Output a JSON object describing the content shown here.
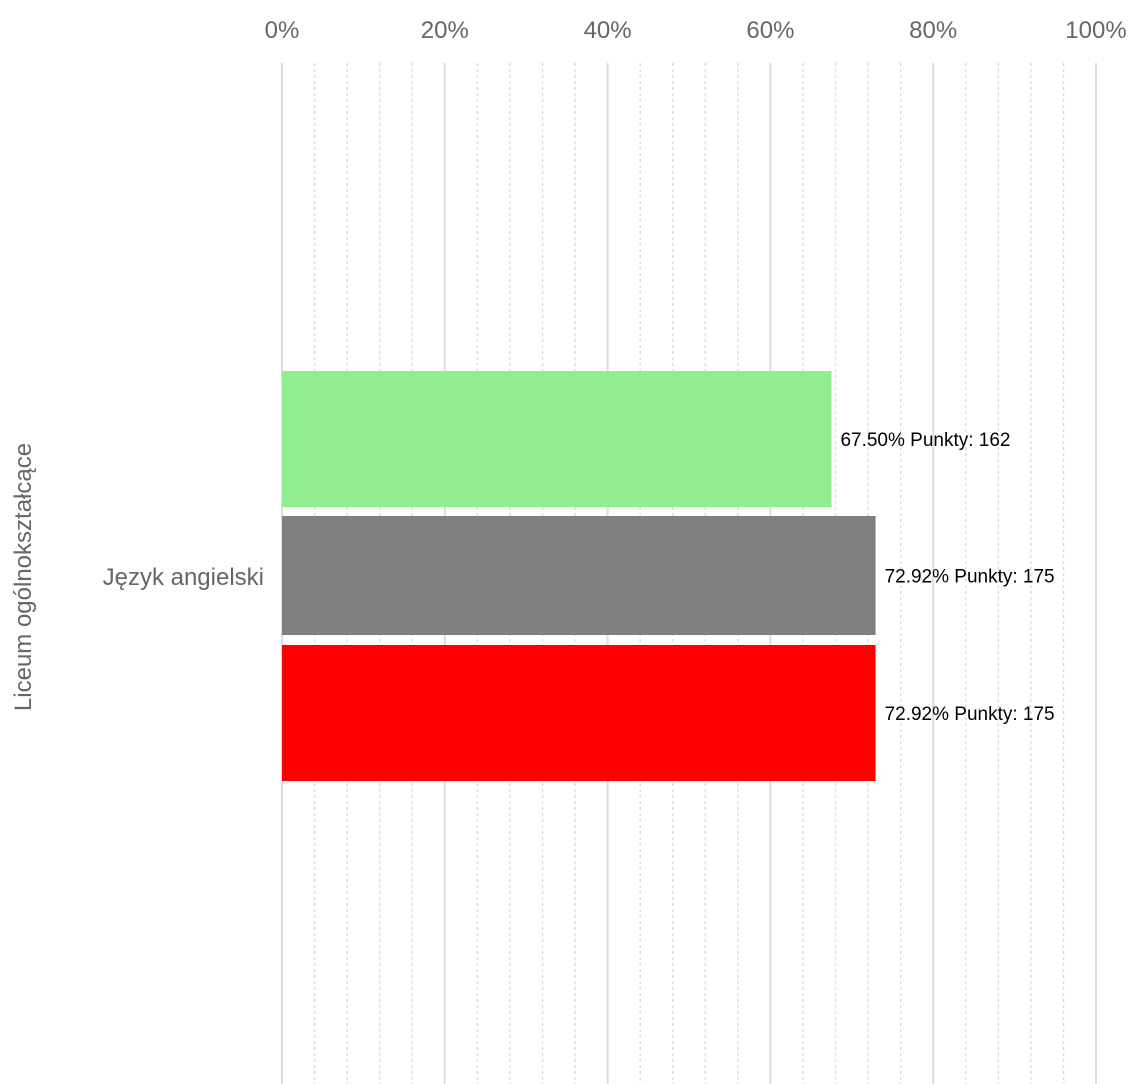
{
  "chart_data": {
    "type": "bar",
    "orientation": "horizontal",
    "title": "",
    "xlabel": "",
    "ylabel": "",
    "group_label": "Liceum ogólnokształcące",
    "categories": [
      "Język angielski"
    ],
    "x_axis": {
      "position": "top",
      "min": 0,
      "max": 100,
      "major_ticks": [
        0,
        20,
        40,
        60,
        80,
        100
      ],
      "tick_labels": [
        "0%",
        "20%",
        "40%",
        "60%",
        "80%",
        "100%"
      ],
      "minor_step": 4
    },
    "grid": true,
    "series": [
      {
        "values": [
          67.5
        ],
        "color": "#90ee90",
        "labels": [
          "67.50% Punkty: 162"
        ]
      },
      {
        "values": [
          72.92
        ],
        "color": "#808080",
        "labels": [
          "72.92% Punkty: 175"
        ]
      },
      {
        "values": [
          72.92
        ],
        "color": "#ff0000",
        "labels": [
          "72.92% Punkty: 175"
        ]
      }
    ]
  }
}
